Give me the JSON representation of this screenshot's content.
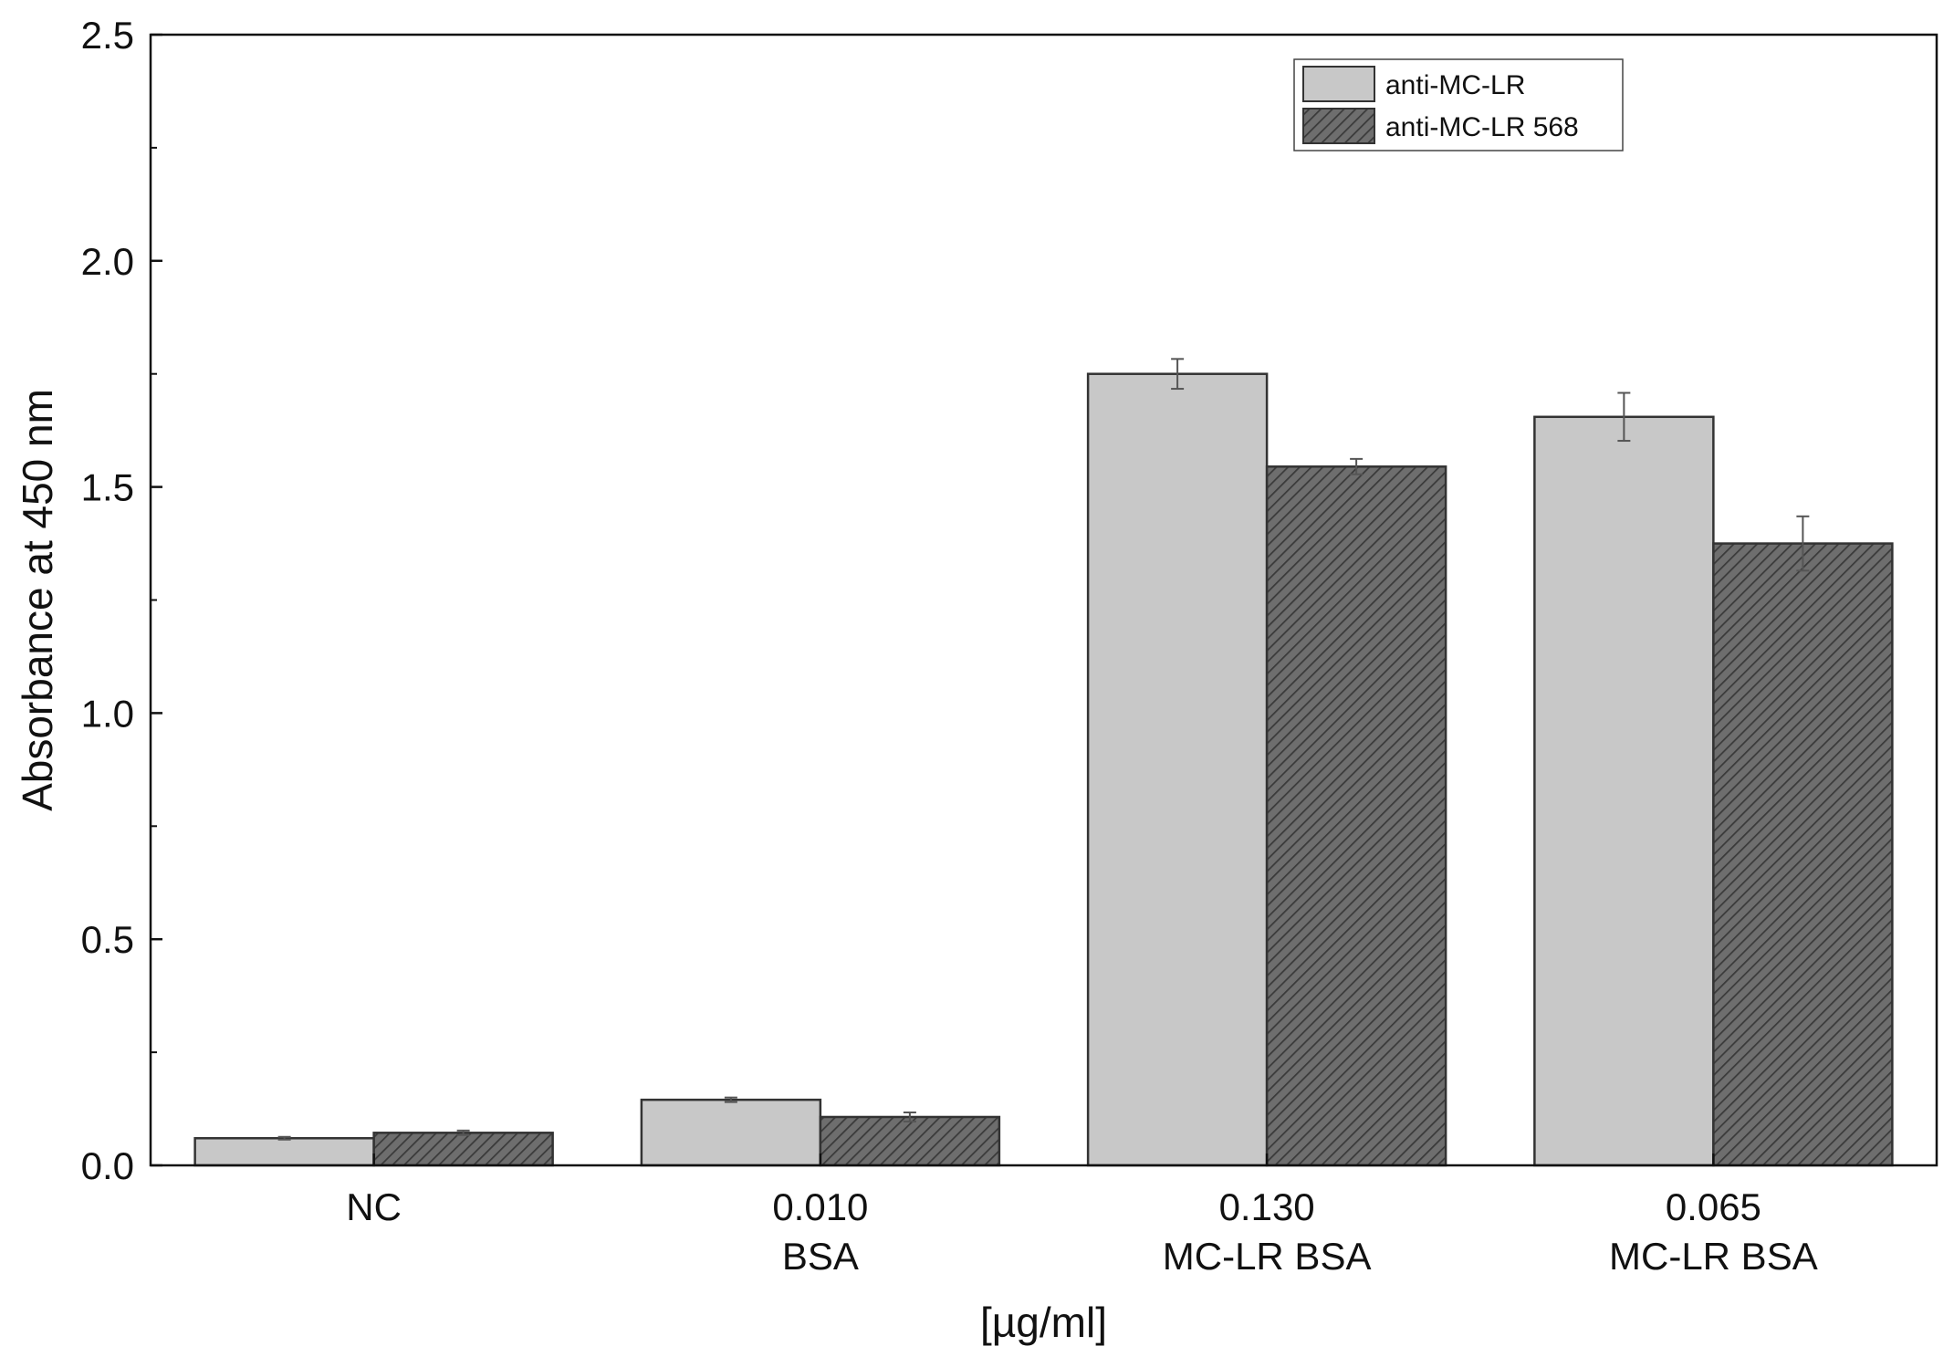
{
  "chart_data": {
    "type": "bar",
    "title": "",
    "xlabel": "[µg/ml]",
    "ylabel": "Absorbance at 450 nm",
    "ylim": [
      0,
      2.5
    ],
    "yticks": [
      0.0,
      0.5,
      1.0,
      1.5,
      2.0,
      2.5
    ],
    "ytick_labels": [
      "0.0",
      "0.5",
      "1.0",
      "1.5",
      "2.0",
      "2.5"
    ],
    "categories": [
      {
        "line1": "NC",
        "line2": ""
      },
      {
        "line1": "0.010",
        "line2": "BSA"
      },
      {
        "line1": "0.130",
        "line2": "MC-LR BSA"
      },
      {
        "line1": "0.065",
        "line2": "MC-LR BSA"
      }
    ],
    "series": [
      {
        "name": "anti-MC-LR",
        "pattern": "solid",
        "color": "#c8c8c8",
        "values": [
          0.06,
          0.145,
          1.75,
          1.655
        ],
        "errors": [
          0.003,
          0.005,
          0.033,
          0.053
        ]
      },
      {
        "name": "anti-MC-LR 568",
        "pattern": "hatched",
        "color": "#6e6e6e",
        "values": [
          0.072,
          0.107,
          1.545,
          1.375
        ],
        "errors": [
          0.005,
          0.01,
          0.017,
          0.06
        ]
      }
    ],
    "legend_position": "top-right",
    "grid": false
  },
  "colors": {
    "axis": "#111111",
    "bar_edge": "#333333",
    "hatch_line": "#3a3a3a",
    "error_bar": "#555555"
  }
}
